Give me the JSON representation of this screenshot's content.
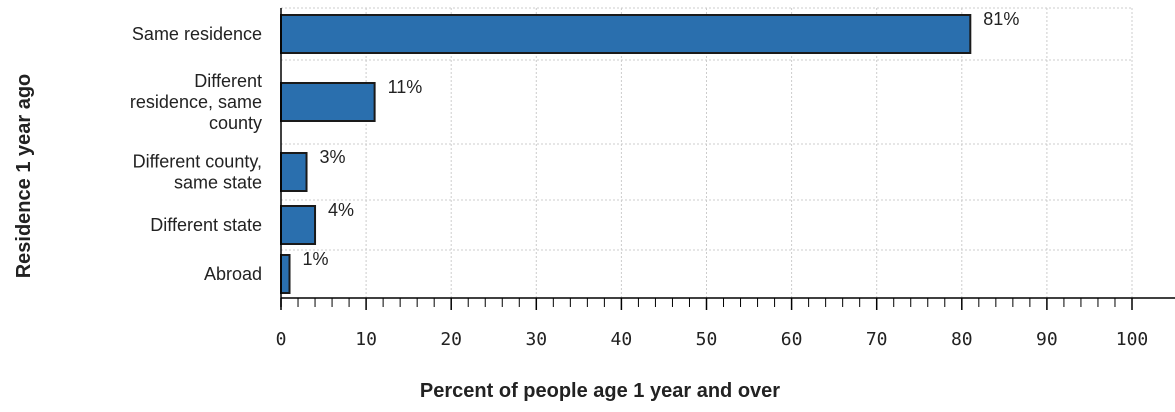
{
  "chart_data": {
    "type": "bar",
    "orientation": "horizontal",
    "categories": [
      [
        "Same residence"
      ],
      [
        "Different",
        "residence, same",
        "county"
      ],
      [
        "Different county,",
        "same state"
      ],
      [
        "Different state"
      ],
      [
        "Abroad"
      ]
    ],
    "values": [
      81,
      11,
      3,
      4,
      1
    ],
    "data_labels": [
      "81%",
      "11%",
      "3%",
      "4%",
      "1%"
    ],
    "xlabel": "Percent of people age 1 year and over",
    "ylabel": "Residence 1 year ago",
    "xlim": [
      0,
      100
    ],
    "xticks": [
      0,
      10,
      20,
      30,
      40,
      50,
      60,
      70,
      80,
      90,
      100
    ],
    "grid": true,
    "legend": "none",
    "colors": {
      "bar": "#2a6fae",
      "bar_edge": "#1a1a1a",
      "grid": "#cccccc",
      "axis": "#000000"
    }
  }
}
